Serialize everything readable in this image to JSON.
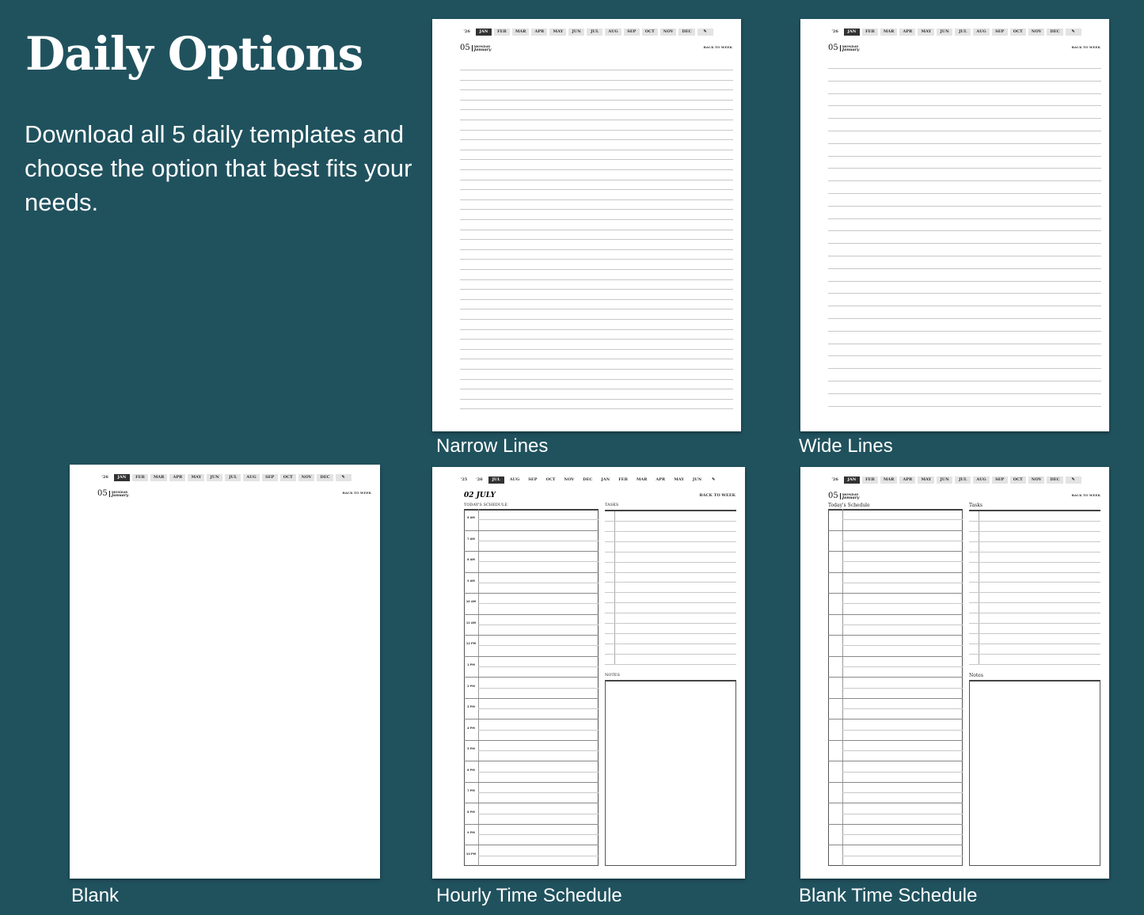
{
  "heading": {
    "title": "Daily Options",
    "description": "Download all 5 daily templates and choose the option that best fits your needs."
  },
  "colors": {
    "background": "#20525e",
    "page": "#ffffff",
    "active_tab": "#333333"
  },
  "calendar_year_tabs": [
    "'26",
    "JAN",
    "FEB",
    "MAR",
    "APR",
    "MAY",
    "JUN",
    "JUL",
    "AUG",
    "SEP",
    "OCT",
    "NOV",
    "DEC"
  ],
  "academic_tabs": [
    "'25",
    "'26",
    "JUL",
    "AUG",
    "SEP",
    "OCT",
    "NOV",
    "DEC",
    "JAN",
    "FEB",
    "MAR",
    "APR",
    "MAY",
    "JUN"
  ],
  "edit_icon": "pencil-icon",
  "date": {
    "day": "05",
    "weekday": "MONDAY",
    "month": "January"
  },
  "back_label": "BACK TO WEEK",
  "templates": [
    {
      "caption": "Narrow Lines",
      "active": "JAN"
    },
    {
      "caption": "Wide Lines",
      "active": "JAN"
    },
    {
      "caption": "Blank",
      "active": "JAN"
    },
    {
      "caption": "Hourly Time Schedule",
      "active": "JUL",
      "date_title": "02 JULY",
      "schedule_label": "TODAY'S SCHEDULE",
      "tasks_label": "TASKS",
      "notes_label": "NOTES",
      "hours": [
        "6 AM",
        "7 AM",
        "8 AM",
        "9 AM",
        "10 AM",
        "11 AM",
        "12 PM",
        "1 PM",
        "2 PM",
        "3 PM",
        "4 PM",
        "5 PM",
        "6 PM",
        "7 PM",
        "8 PM",
        "9 PM",
        "10 PM"
      ]
    },
    {
      "caption": "Blank Time Schedule",
      "active": "JAN",
      "schedule_label": "Today's Schedule",
      "tasks_label": "Tasks",
      "notes_label": "Notes"
    }
  ]
}
